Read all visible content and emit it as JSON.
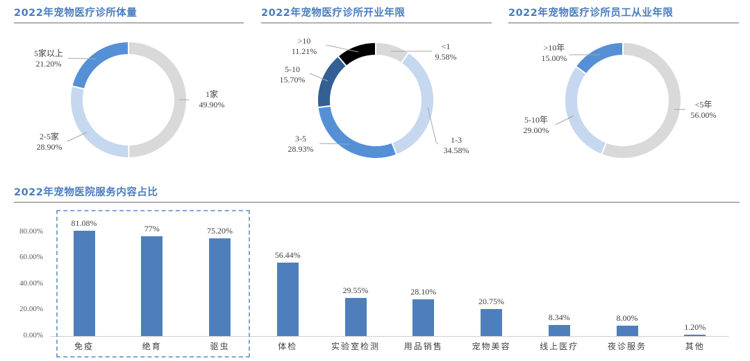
{
  "colors": {
    "title": "#4a7dbf",
    "rule": "#b0b0b0",
    "bar": "#4e7fbc",
    "highlight_box": "#7ea6d3"
  },
  "chart_data": [
    {
      "type": "pie",
      "subtype": "donut",
      "title": "2022年宠物医疗诊所体量",
      "categories": [
        "1家",
        "2-5家",
        "5家以上"
      ],
      "values": [
        49.9,
        28.9,
        21.2
      ],
      "labels": [
        "49.90%",
        "28.90%",
        "21.20%"
      ],
      "colors": [
        "#d9d9d9",
        "#c5d8f0",
        "#5590d6"
      ]
    },
    {
      "type": "pie",
      "subtype": "donut",
      "title": "2022年宠物医疗诊所开业年限",
      "categories": [
        "<1",
        "1-3",
        "3-5",
        "5-10",
        ">10"
      ],
      "values": [
        9.58,
        34.58,
        28.93,
        15.7,
        11.21
      ],
      "labels": [
        "9.58%",
        "34.58%",
        "28.93%",
        "15.70%",
        "11.21%"
      ],
      "colors": [
        "#d9d9d9",
        "#c5d8f0",
        "#5590d6",
        "#335f94",
        "#000000"
      ]
    },
    {
      "type": "pie",
      "subtype": "donut",
      "title": "2022年宠物医疗诊所员工从业年限",
      "categories": [
        "<5年",
        "5-10年",
        ">10年"
      ],
      "values": [
        56.0,
        29.0,
        15.0
      ],
      "labels": [
        "56.00%",
        "29.00%",
        "15.00%"
      ],
      "colors": [
        "#d9d9d9",
        "#c5d8f0",
        "#5590d6"
      ]
    },
    {
      "type": "bar",
      "title": "2022年宠物医院服务内容占比",
      "categories": [
        "免疫",
        "绝育",
        "驱虫",
        "体检",
        "实验室检测",
        "用品销售",
        "宠物美容",
        "线上医疗",
        "夜诊服务",
        "其他"
      ],
      "values": [
        81.08,
        77,
        75.2,
        56.44,
        29.55,
        28.1,
        20.75,
        8.34,
        8.0,
        1.2
      ],
      "value_labels": [
        "81.08%",
        "77%",
        "75.20%",
        "56.44%",
        "29.55%",
        "28.10%",
        "20.75%",
        "8.34%",
        "8.00%",
        "1.20%"
      ],
      "yticks": [
        "0.00%",
        "20.00%",
        "40.00%",
        "60.00%",
        "80.00%"
      ],
      "ylim": [
        0,
        80
      ],
      "xlabel": "",
      "ylabel": "",
      "grid": false,
      "annotation": "dashed box highlighting 免疫, 绝育, 驱虫"
    }
  ],
  "donut1": {
    "title": "2022年宠物医疗诊所体量",
    "slices": [
      {
        "name": "1家",
        "value": "49.90%"
      },
      {
        "name": "2-5家",
        "value": "28.90%"
      },
      {
        "name": "5家以上",
        "value": "21.20%"
      }
    ]
  },
  "donut2": {
    "title": "2022年宠物医疗诊所开业年限",
    "slices": [
      {
        "name": "<1",
        "value": "9.58%"
      },
      {
        "name": "1-3",
        "value": "34.58%"
      },
      {
        "name": "3-5",
        "value": "28.93%"
      },
      {
        "name": "5-10",
        "value": "15.70%"
      },
      {
        "name": ">10",
        "value": "11.21%"
      }
    ]
  },
  "donut3": {
    "title": "2022年宠物医疗诊所员工从业年限",
    "slices": [
      {
        "name": "<5年",
        "value": "56.00%"
      },
      {
        "name": "5-10年",
        "value": "29.00%"
      },
      {
        "name": ">10年",
        "value": "15.00%"
      }
    ]
  },
  "barchart": {
    "title": "2022年宠物医院服务内容占比",
    "yticks": [
      "80.00%",
      "60.00%",
      "40.00%",
      "20.00%",
      "0.00%"
    ],
    "bars": [
      {
        "name": "免疫",
        "label": "81.08%"
      },
      {
        "name": "绝育",
        "label": "77%"
      },
      {
        "name": "驱虫",
        "label": "75.20%"
      },
      {
        "name": "体检",
        "label": "56.44%"
      },
      {
        "name": "实验室检测",
        "label": "29.55%"
      },
      {
        "name": "用品销售",
        "label": "28.10%"
      },
      {
        "name": "宠物美容",
        "label": "20.75%"
      },
      {
        "name": "线上医疗",
        "label": "8.34%"
      },
      {
        "name": "夜诊服务",
        "label": "8.00%"
      },
      {
        "name": "其他",
        "label": "1.20%"
      }
    ]
  }
}
